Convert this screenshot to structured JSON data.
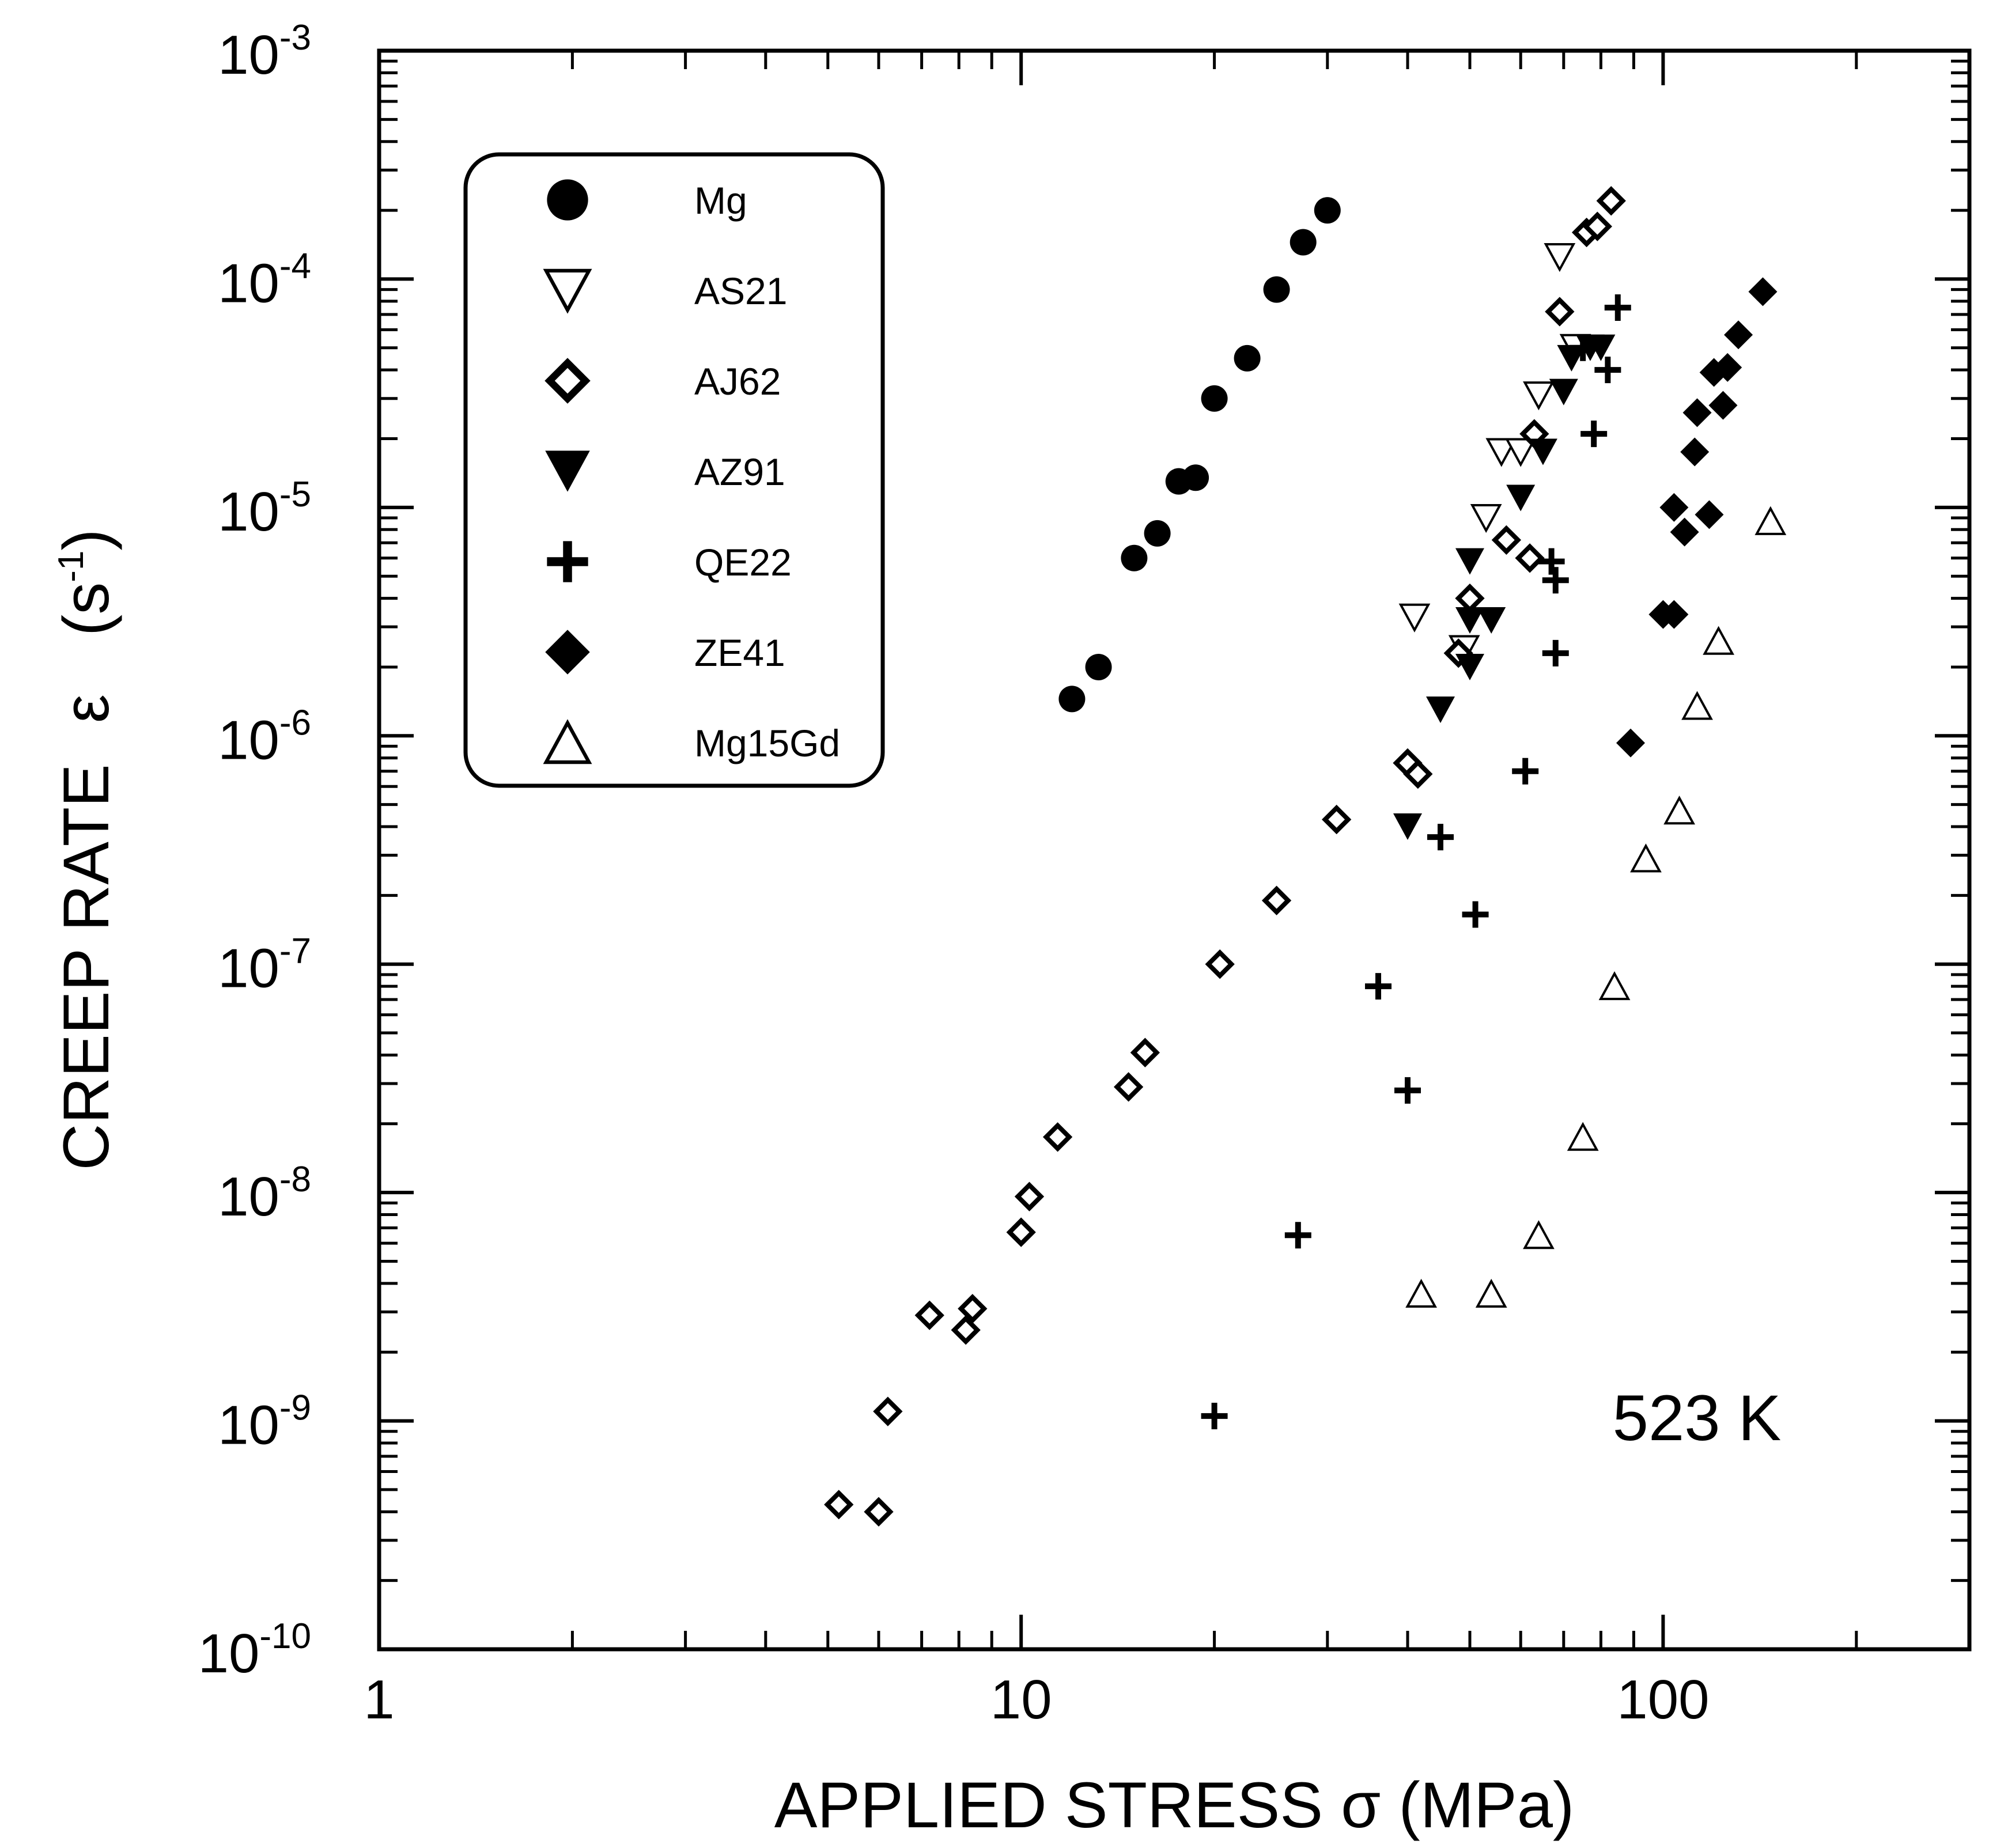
{
  "chart_data": {
    "type": "scatter",
    "title": "",
    "xlabel": "APPLIED STRESS σ (MPa)",
    "ylabel": "CREEP RATE  ε̇  (s-1)",
    "ylabel_parts": {
      "main": "CREEP RATE",
      "symbol": "ε",
      "unit_open": "(s",
      "unit_exp": "-1",
      "unit_close": ")"
    },
    "xscale": "log",
    "yscale": "log",
    "xlim": [
      1,
      300
    ],
    "ylim": [
      1e-10,
      0.001
    ],
    "x_ticks": [
      {
        "value": 1,
        "label": "1"
      },
      {
        "value": 10,
        "label": "10"
      },
      {
        "value": 100,
        "label": "100"
      }
    ],
    "y_ticks": [
      {
        "value": 1e-10,
        "base": "10",
        "exp": "-10"
      },
      {
        "value": 1e-09,
        "base": "10",
        "exp": "-9"
      },
      {
        "value": 1e-08,
        "base": "10",
        "exp": "-8"
      },
      {
        "value": 1e-07,
        "base": "10",
        "exp": "-7"
      },
      {
        "value": 1e-06,
        "base": "10",
        "exp": "-6"
      },
      {
        "value": 1e-05,
        "base": "10",
        "exp": "-5"
      },
      {
        "value": 0.0001,
        "base": "10",
        "exp": "-4"
      },
      {
        "value": 0.001,
        "base": "10",
        "exp": "-3"
      }
    ],
    "annotation": "523 K",
    "legend_position": "top-left",
    "series": [
      {
        "name": "Mg",
        "marker": "filled-circle",
        "points": [
          [
            12.0,
            1.45e-06
          ],
          [
            13.2,
            2e-06
          ],
          [
            15.0,
            6e-06
          ],
          [
            16.3,
            7.7e-06
          ],
          [
            17.6,
            1.3e-05
          ],
          [
            18.7,
            1.35e-05
          ],
          [
            20.0,
            3e-05
          ],
          [
            22.5,
            4.5e-05
          ],
          [
            25.0,
            9e-05
          ],
          [
            27.5,
            0.000145
          ],
          [
            30.0,
            0.0002
          ]
        ]
      },
      {
        "name": "AS21",
        "marker": "open-triangle-down",
        "points": [
          [
            41.0,
            3.3e-06
          ],
          [
            49.0,
            2.4e-06
          ],
          [
            53.0,
            9e-06
          ],
          [
            56.0,
            1.75e-05
          ],
          [
            60.0,
            1.75e-05
          ],
          [
            64.0,
            3.1e-05
          ],
          [
            69.0,
            0.000125
          ],
          [
            73.0,
            5e-05
          ]
        ]
      },
      {
        "name": "AJ62",
        "marker": "open-diamond",
        "points": [
          [
            5.2,
            4.3e-10
          ],
          [
            6.0,
            4e-10
          ],
          [
            6.2,
            1.1e-09
          ],
          [
            7.2,
            2.9e-09
          ],
          [
            8.2,
            2.5e-09
          ],
          [
            8.4,
            3.1e-09
          ],
          [
            10.0,
            6.7e-09
          ],
          [
            10.3,
            9.6e-09
          ],
          [
            11.4,
            1.75e-08
          ],
          [
            14.7,
            2.9e-08
          ],
          [
            15.6,
            4.1e-08
          ],
          [
            20.4,
            1e-07
          ],
          [
            25.0,
            1.9e-07
          ],
          [
            31.0,
            4.3e-07
          ],
          [
            40.0,
            7.6e-07
          ],
          [
            41.5,
            6.8e-07
          ],
          [
            48.0,
            2.3e-06
          ],
          [
            50.0,
            4e-06
          ],
          [
            57.0,
            7.2e-06
          ],
          [
            62.0,
            6e-06
          ],
          [
            63.0,
            2.1e-05
          ],
          [
            69.0,
            7.2e-05
          ],
          [
            76.0,
            0.00016
          ],
          [
            79.0,
            0.00017
          ],
          [
            83.0,
            0.00022
          ]
        ]
      },
      {
        "name": "AZ91",
        "marker": "filled-triangle-down",
        "points": [
          [
            40.0,
            4e-07
          ],
          [
            45.0,
            1.3e-06
          ],
          [
            50.0,
            2e-06
          ],
          [
            50.0,
            3.2e-06
          ],
          [
            50.0,
            5.8e-06
          ],
          [
            54.0,
            3.2e-06
          ],
          [
            60.0,
            1.1e-05
          ],
          [
            65.0,
            1.75e-05
          ],
          [
            70.0,
            3.2e-05
          ],
          [
            72.0,
            4.5e-05
          ],
          [
            77.0,
            5e-05
          ],
          [
            80.0,
            5e-05
          ]
        ]
      },
      {
        "name": "QE22",
        "marker": "plus",
        "points": [
          [
            20.0,
            1.05e-09
          ],
          [
            27.0,
            6.5e-09
          ],
          [
            36.0,
            8e-08
          ],
          [
            40.0,
            2.8e-08
          ],
          [
            45.0,
            3.6e-07
          ],
          [
            51.0,
            1.65e-07
          ],
          [
            61.0,
            7e-07
          ],
          [
            67.0,
            5.8e-06
          ],
          [
            68.0,
            4.8e-06
          ],
          [
            68.0,
            2.3e-06
          ],
          [
            78.0,
            2.1e-05
          ],
          [
            82.0,
            4e-05
          ],
          [
            85.0,
            7.5e-05
          ],
          [
            75.0,
            5e-05
          ]
        ]
      },
      {
        "name": "ZE41",
        "marker": "filled-diamond",
        "points": [
          [
            89.0,
            9.3e-07
          ],
          [
            100.0,
            3.4e-06
          ],
          [
            104.0,
            3.4e-06
          ],
          [
            104.0,
            1e-05
          ],
          [
            108.0,
            7.8e-06
          ],
          [
            112.0,
            1.75e-05
          ],
          [
            113.0,
            2.6e-05
          ],
          [
            118.0,
            9.3e-06
          ],
          [
            120.0,
            3.9e-05
          ],
          [
            124.0,
            2.8e-05
          ],
          [
            126.0,
            4.1e-05
          ],
          [
            131.0,
            5.7e-05
          ],
          [
            143.0,
            8.8e-05
          ]
        ]
      },
      {
        "name": "Mg15Gd",
        "marker": "open-triangle-up",
        "points": [
          [
            42.0,
            3.6e-09
          ],
          [
            54.0,
            3.6e-09
          ],
          [
            64.0,
            6.5e-09
          ],
          [
            75.0,
            1.75e-08
          ],
          [
            84.0,
            8e-08
          ],
          [
            94.0,
            2.9e-07
          ],
          [
            106.0,
            4.7e-07
          ],
          [
            113.0,
            1.35e-06
          ],
          [
            122.0,
            2.6e-06
          ],
          [
            147.0,
            8.7e-06
          ]
        ]
      }
    ]
  }
}
